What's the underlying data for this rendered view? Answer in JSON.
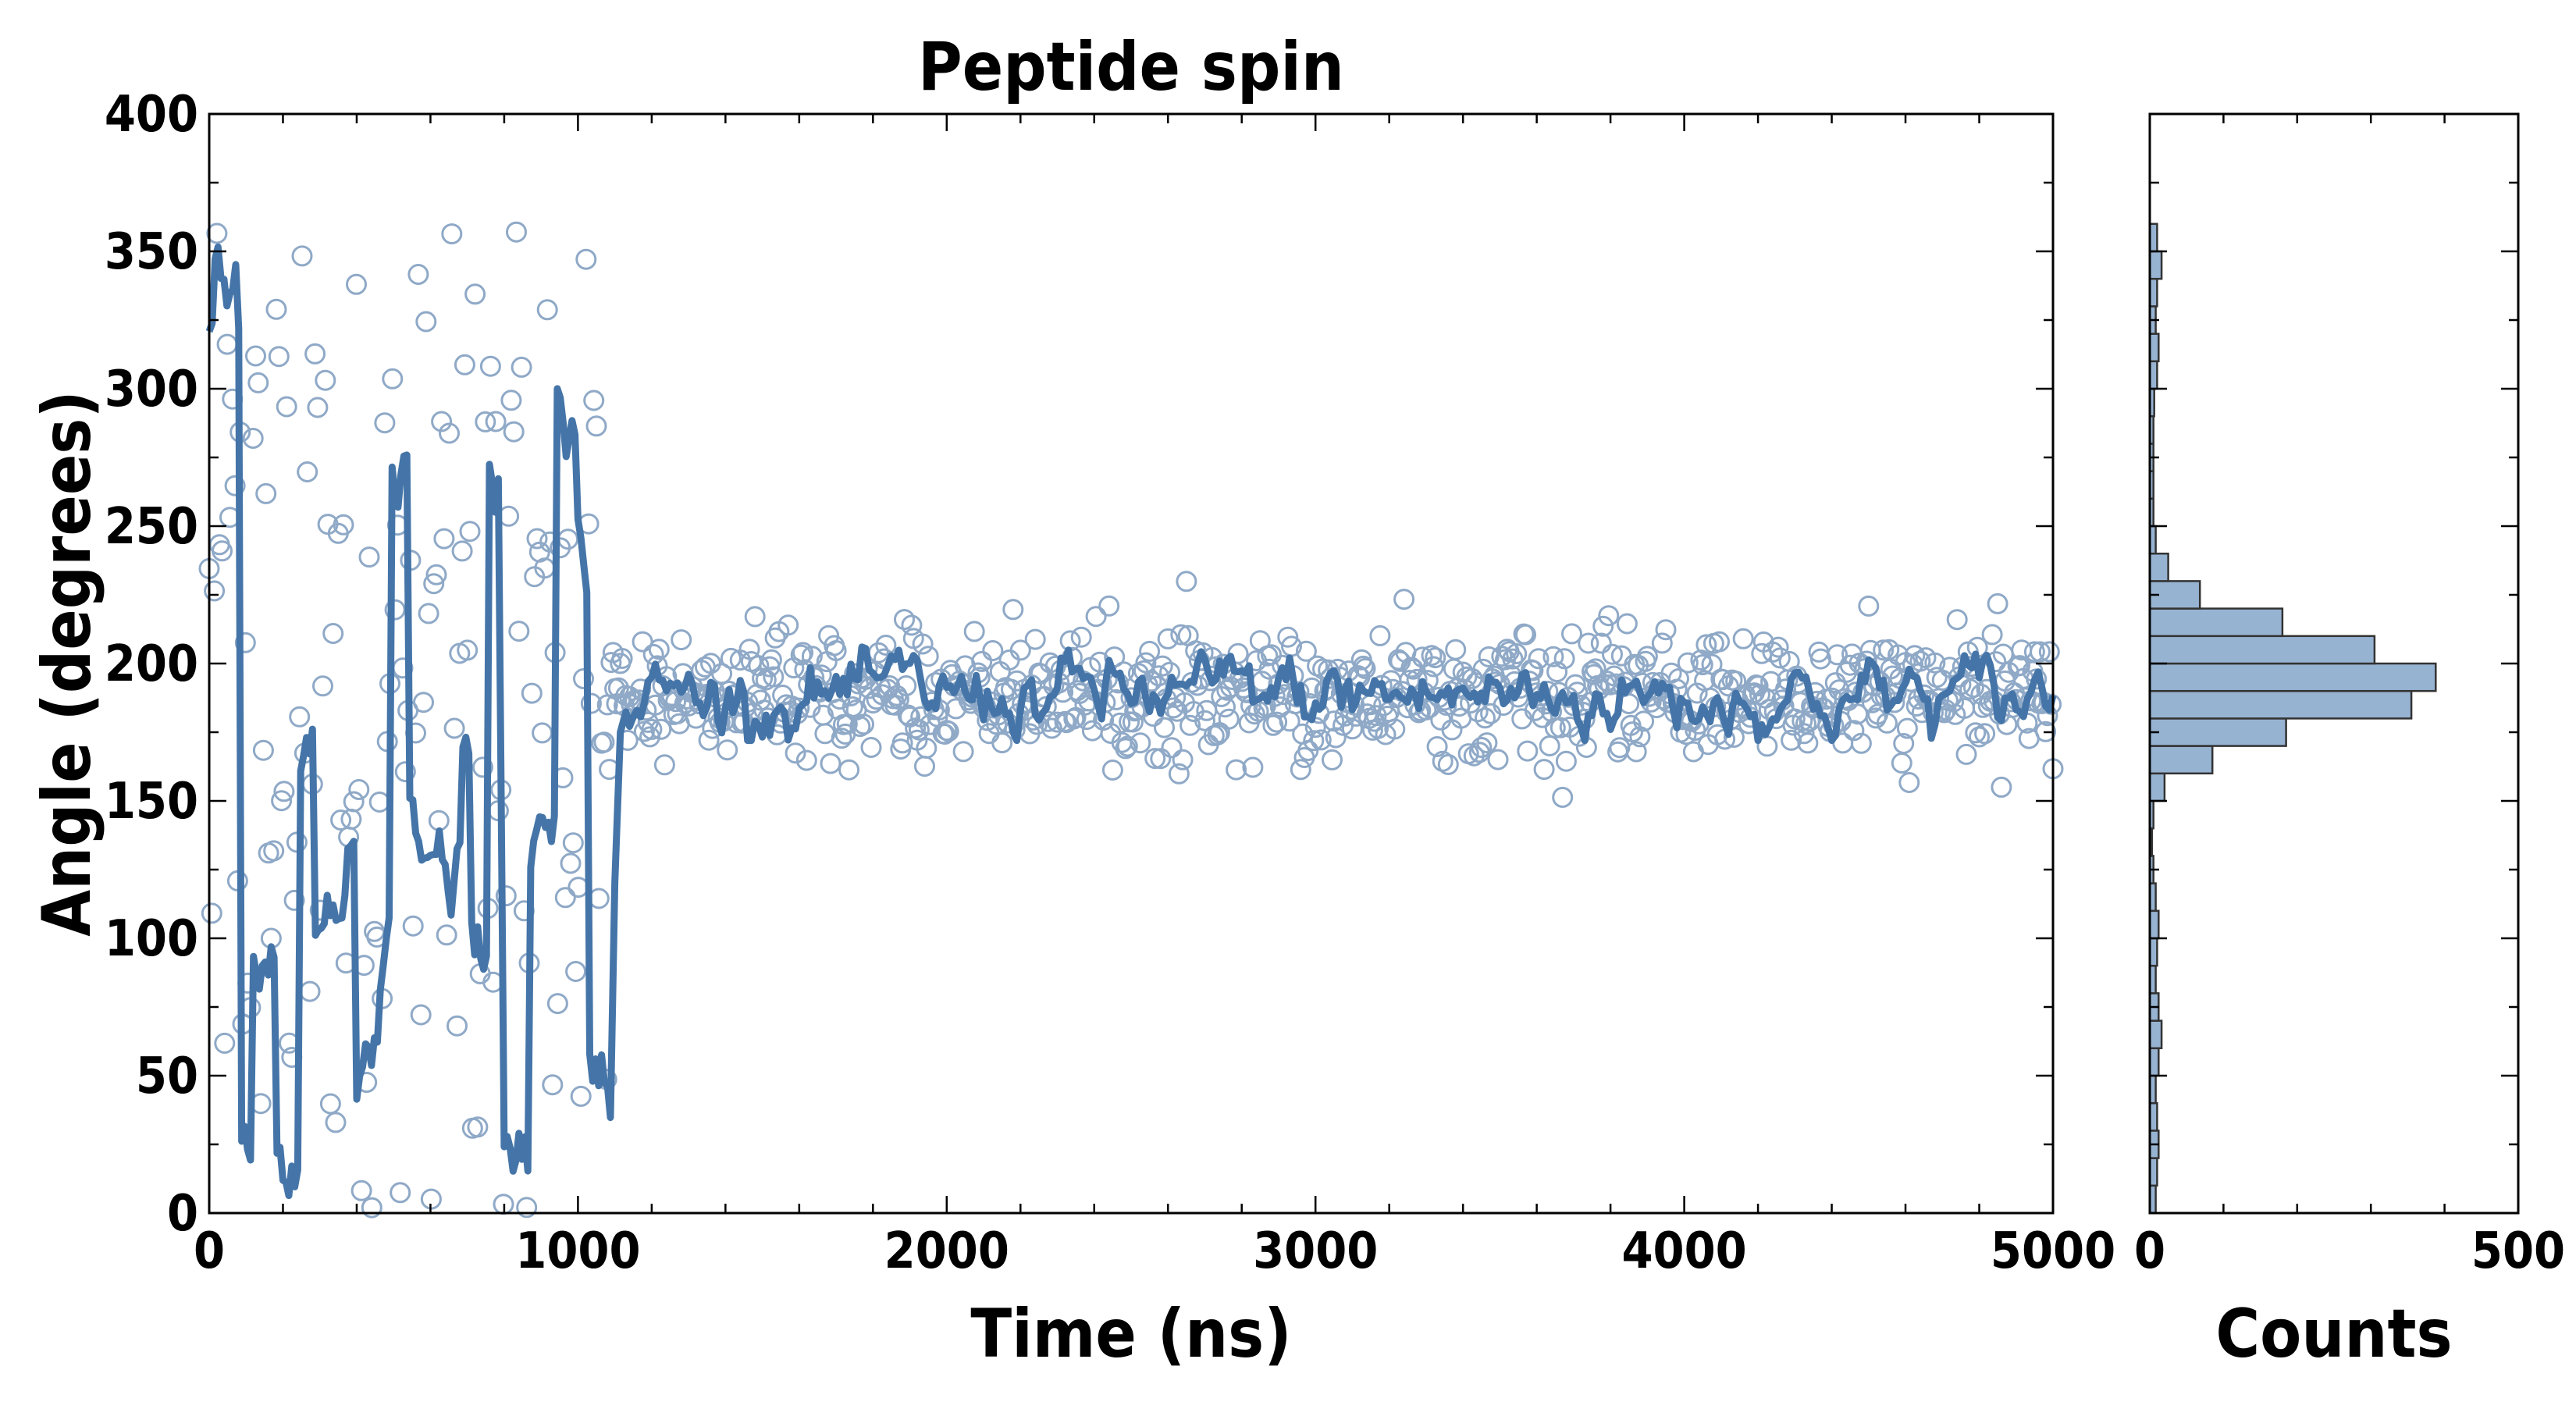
{
  "colors": {
    "series": "#4575A8",
    "scatter_stroke": "#8FA9C7",
    "hist_fill": "#97B3D2",
    "axis": "#000000"
  },
  "chart_data": [
    {
      "type": "scatter",
      "title": "Peptide spin",
      "xlabel": "Time (ns)",
      "ylabel": "Angle (degrees)",
      "xlim": [
        0,
        5000
      ],
      "ylim": [
        0,
        400
      ],
      "xticks": [
        0,
        1000,
        2000,
        3000,
        4000,
        5000
      ],
      "yticks": [
        0,
        50,
        100,
        150,
        200,
        250,
        300,
        350,
        400
      ],
      "xtick_labels": [
        "0",
        "1000",
        "2000",
        "3000",
        "4000",
        "5000"
      ],
      "ytick_labels": [
        "0",
        "50",
        "100",
        "150",
        "200",
        "250",
        "300",
        "350",
        "400"
      ],
      "series": [
        {
          "name": "raw angle samples",
          "kind": "scatter",
          "marker": "open circle",
          "description": "Rapidly varying angle 0–360 deg up to ~1050 ns, then settles around 190 deg with spread ~165–215 deg until 5000 ns",
          "segments": [
            {
              "t_start": 0,
              "t_end": 1080,
              "angle_min": 0,
              "angle_max": 358,
              "spacing_ns": 7
            },
            {
              "t_start": 1080,
              "t_end": 5000,
              "angle_mean": 188,
              "angle_spread_sd": 11,
              "spacing_ns": 5
            }
          ]
        },
        {
          "name": "running average",
          "kind": "line",
          "description": "Jumps between ~20 and ~350 deg before ~1100 ns, sharp rise near 1100 ns, then fluctuates around 188 deg (≈175–205)"
        }
      ],
      "grid": false
    },
    {
      "type": "bar",
      "orientation": "horizontal",
      "title": "",
      "xlabel": "Counts",
      "ylabel": "",
      "xlim": [
        0,
        500
      ],
      "ylim": [
        0,
        400
      ],
      "xticks": [
        0,
        500
      ],
      "xtick_labels": [
        "0",
        "500"
      ],
      "bin_width": 10,
      "bins": [
        {
          "range": [
            0,
            10
          ],
          "count": 8
        },
        {
          "range": [
            10,
            20
          ],
          "count": 10
        },
        {
          "range": [
            20,
            30
          ],
          "count": 12
        },
        {
          "range": [
            30,
            40
          ],
          "count": 10
        },
        {
          "range": [
            40,
            50
          ],
          "count": 8
        },
        {
          "range": [
            50,
            60
          ],
          "count": 12
        },
        {
          "range": [
            60,
            70
          ],
          "count": 16
        },
        {
          "range": [
            70,
            80
          ],
          "count": 12
        },
        {
          "range": [
            80,
            90
          ],
          "count": 8
        },
        {
          "range": [
            90,
            100
          ],
          "count": 10
        },
        {
          "range": [
            100,
            110
          ],
          "count": 12
        },
        {
          "range": [
            110,
            120
          ],
          "count": 8
        },
        {
          "range": [
            120,
            130
          ],
          "count": 5
        },
        {
          "range": [
            130,
            140
          ],
          "count": 3
        },
        {
          "range": [
            140,
            150
          ],
          "count": 5
        },
        {
          "range": [
            150,
            160
          ],
          "count": 20
        },
        {
          "range": [
            160,
            170
          ],
          "count": 85
        },
        {
          "range": [
            170,
            180
          ],
          "count": 185
        },
        {
          "range": [
            180,
            190
          ],
          "count": 355
        },
        {
          "range": [
            190,
            200
          ],
          "count": 388
        },
        {
          "range": [
            200,
            210
          ],
          "count": 305
        },
        {
          "range": [
            210,
            220
          ],
          "count": 180
        },
        {
          "range": [
            220,
            230
          ],
          "count": 68
        },
        {
          "range": [
            230,
            240
          ],
          "count": 25
        },
        {
          "range": [
            240,
            250
          ],
          "count": 8
        },
        {
          "range": [
            250,
            260
          ],
          "count": 5
        },
        {
          "range": [
            260,
            270
          ],
          "count": 5
        },
        {
          "range": [
            270,
            280
          ],
          "count": 5
        },
        {
          "range": [
            280,
            290
          ],
          "count": 5
        },
        {
          "range": [
            290,
            300
          ],
          "count": 6
        },
        {
          "range": [
            300,
            310
          ],
          "count": 10
        },
        {
          "range": [
            310,
            320
          ],
          "count": 12
        },
        {
          "range": [
            320,
            330
          ],
          "count": 8
        },
        {
          "range": [
            330,
            340
          ],
          "count": 10
        },
        {
          "range": [
            340,
            350
          ],
          "count": 16
        },
        {
          "range": [
            350,
            360
          ],
          "count": 10
        }
      ],
      "grid": false
    }
  ]
}
